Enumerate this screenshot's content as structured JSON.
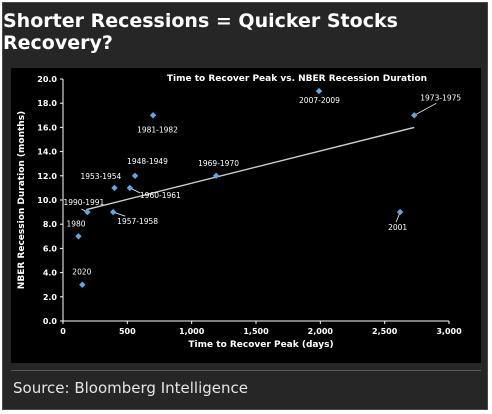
{
  "page": {
    "title": "Shorter Recessions = Quicker Stocks Recovery?",
    "source": "Source: Bloomberg Intelligence"
  },
  "colors": {
    "frame_bg": "#262626",
    "plot_bg": "#000000",
    "marker": "#5aa9e6",
    "trendline": "#cfcfcf",
    "text": "#ffffff"
  },
  "chart_data": {
    "type": "scatter",
    "title": "Time to Recover Peak vs. NBER Recession Duration",
    "xlabel": "Time to Recover Peak (days)",
    "ylabel": "NBER Recession Duration (months)",
    "xlim": [
      0,
      3000
    ],
    "ylim": [
      0,
      20
    ],
    "xticks": [
      0,
      500,
      1000,
      1500,
      2000,
      2500,
      3000
    ],
    "xtick_labels": [
      "0",
      "500",
      "1,000",
      "1,500",
      "2,000",
      "2,500",
      "3,000"
    ],
    "yticks": [
      0,
      2,
      4,
      6,
      8,
      10,
      12,
      14,
      16,
      18,
      20
    ],
    "ytick_labels": [
      "0.0",
      "2.0",
      "4.0",
      "6.0",
      "8.0",
      "10.0",
      "12.0",
      "14.0",
      "16.0",
      "18.0",
      "20.0"
    ],
    "grid": false,
    "points": [
      {
        "label": "1948-1949",
        "x": 560,
        "y": 12
      },
      {
        "label": "1953-1954",
        "x": 400,
        "y": 11
      },
      {
        "label": "1957-1958",
        "x": 390,
        "y": 9
      },
      {
        "label": "1960-1961",
        "x": 520,
        "y": 11
      },
      {
        "label": "1969-1970",
        "x": 1190,
        "y": 12
      },
      {
        "label": "1973-1975",
        "x": 2730,
        "y": 17
      },
      {
        "label": "1980",
        "x": 120,
        "y": 7
      },
      {
        "label": "1981-1982",
        "x": 700,
        "y": 17
      },
      {
        "label": "1990-1991",
        "x": 190,
        "y": 9
      },
      {
        "label": "2001",
        "x": 2620,
        "y": 9
      },
      {
        "label": "2007-2009",
        "x": 1990,
        "y": 19
      },
      {
        "label": "2020",
        "x": 150,
        "y": 3
      }
    ],
    "trendline": {
      "x": [
        180,
        2730
      ],
      "y": [
        9.2,
        16.0
      ]
    }
  }
}
